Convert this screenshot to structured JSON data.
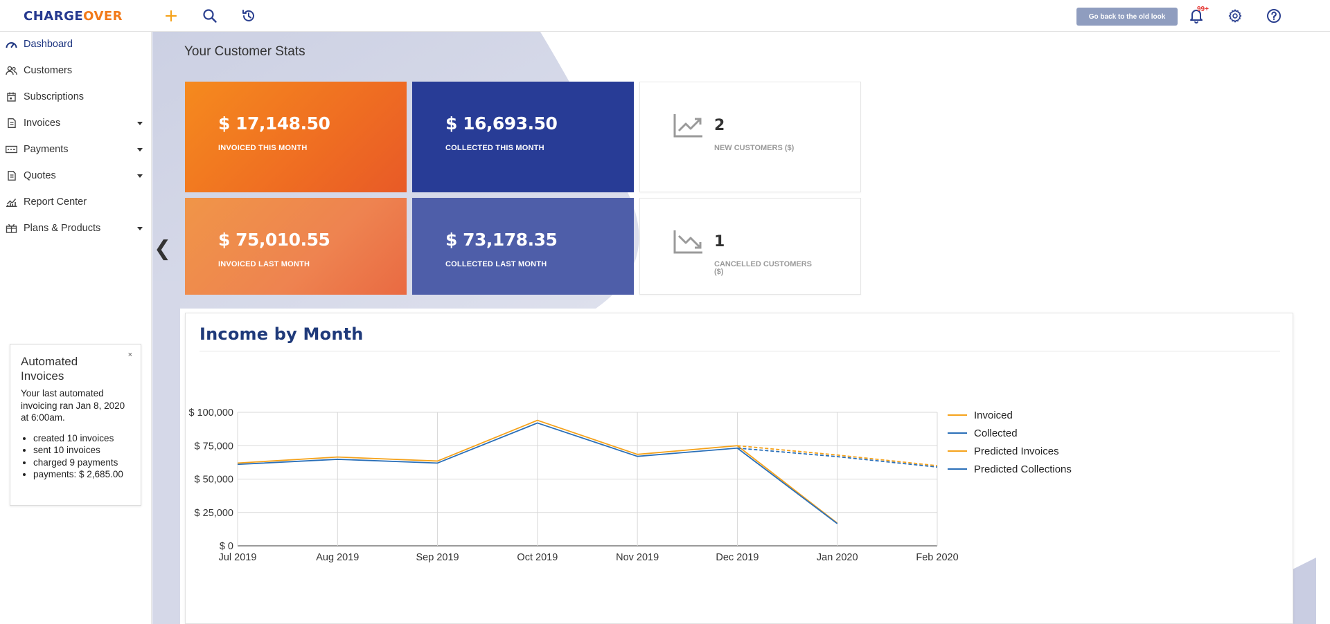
{
  "brand": {
    "charge": "CHARGE",
    "over": "OVER"
  },
  "topbar": {
    "add_icon": "plus-icon",
    "search_icon": "search-icon",
    "history_icon": "history-icon",
    "old_look_label": "Go back to the old look",
    "notification_badge": "99+",
    "settings_icon": "gear-icon",
    "help_icon": "help-icon"
  },
  "sidebar": {
    "items": [
      {
        "label": "Dashboard",
        "icon": "dashboard-icon",
        "active": true,
        "has_dropdown": false
      },
      {
        "label": "Customers",
        "icon": "users-icon",
        "has_dropdown": false
      },
      {
        "label": "Subscriptions",
        "icon": "calendar-icon",
        "has_dropdown": false
      },
      {
        "label": "Invoices",
        "icon": "invoice-icon",
        "has_dropdown": true
      },
      {
        "label": "Payments",
        "icon": "payment-icon",
        "has_dropdown": true
      },
      {
        "label": "Quotes",
        "icon": "quote-icon",
        "has_dropdown": true
      },
      {
        "label": "Report Center",
        "icon": "report-icon",
        "has_dropdown": false
      },
      {
        "label": "Plans & Products",
        "icon": "box-icon",
        "has_dropdown": true
      }
    ],
    "collapse_glyph": "❮"
  },
  "automated_invoices": {
    "title": "Automated Invoices",
    "message": "Your last automated invoicing ran Jan 8, 2020 at 6:00am.",
    "bullets": [
      "created 10 invoices",
      "sent 10 invoices",
      "charged 9 payments",
      "payments: $ 2,685.00"
    ],
    "close": "×"
  },
  "stats": {
    "title": "Your Customer Stats",
    "invoiced_this_month": {
      "value": "$ 17,148.50",
      "label": "INVOICED THIS MONTH"
    },
    "collected_this_month": {
      "value": "$ 16,693.50",
      "label": "COLLECTED THIS MONTH"
    },
    "new_customers": {
      "value": "2",
      "label": "NEW CUSTOMERS ($)"
    },
    "invoiced_last_month": {
      "value": "$ 75,010.55",
      "label": "INVOICED LAST MONTH"
    },
    "collected_last_month": {
      "value": "$ 73,178.35",
      "label": "COLLECTED LAST MONTH"
    },
    "cancelled_customers": {
      "value": "1",
      "label": "CANCELLED CUSTOMERS ($)"
    }
  },
  "colors": {
    "invoiced": "#f5a21b",
    "collected": "#2a6fb8",
    "grid": "#d8d8d8"
  },
  "chart_data": {
    "type": "line",
    "title": "Income by Month",
    "categories": [
      "Jul 2019",
      "Aug 2019",
      "Sep 2019",
      "Oct 2019",
      "Nov 2019",
      "Dec 2019",
      "Jan 2020",
      "Feb 2020"
    ],
    "y_ticks": [
      "$ 0",
      "$ 25,000",
      "$ 50,000",
      "$ 75,000",
      "$ 100,000"
    ],
    "ylim": [
      0,
      100000
    ],
    "legend_position": "right",
    "grid": true,
    "series": [
      {
        "name": "Invoiced",
        "color": "#f5a21b",
        "dashed": false,
        "values": [
          62000,
          66500,
          63500,
          94000,
          68500,
          75000,
          17000,
          null
        ]
      },
      {
        "name": "Collected",
        "color": "#2a6fb8",
        "dashed": false,
        "values": [
          61000,
          64800,
          62000,
          92000,
          67000,
          73200,
          16600,
          null
        ]
      },
      {
        "name": "Predicted Invoices",
        "color": "#f5a21b",
        "dashed": true,
        "values": [
          null,
          null,
          null,
          null,
          null,
          75000,
          68000,
          60000
        ]
      },
      {
        "name": "Predicted Collections",
        "color": "#2a6fb8",
        "dashed": true,
        "values": [
          null,
          null,
          null,
          null,
          null,
          73200,
          66800,
          59000
        ]
      }
    ]
  }
}
